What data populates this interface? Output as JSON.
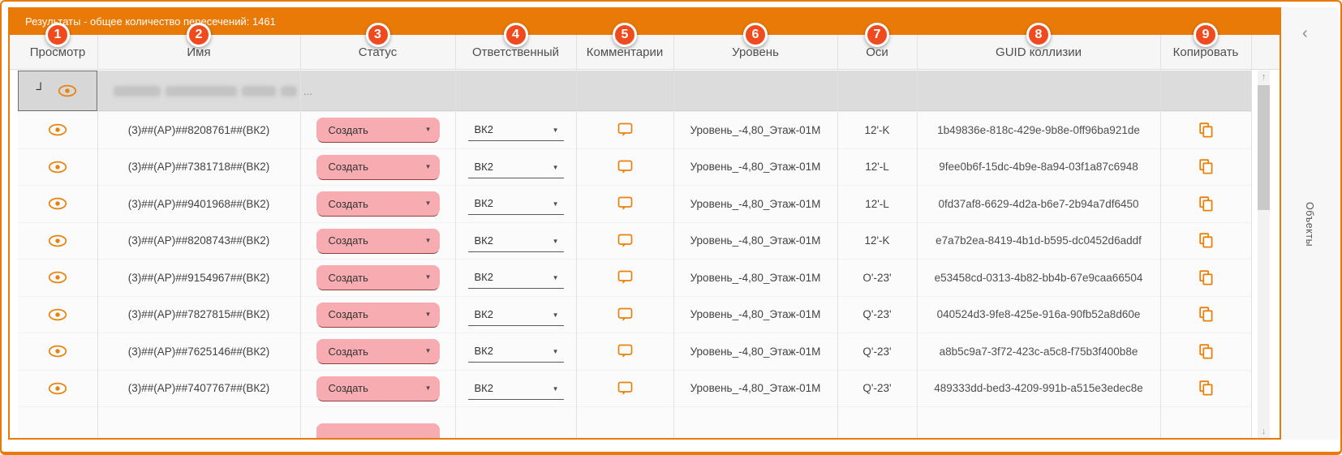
{
  "window": {
    "title": "Результаты - общее количество пересечений: 1461"
  },
  "side_panel": {
    "label": "Объекты",
    "collapse_icon": "‹",
    "collapse_icon_name": "chevron-left-icon"
  },
  "colors": {
    "accent": "#ea7a08",
    "badge": "#f04b1f",
    "icon": "#e8820e",
    "status_pink": "#f7acb1",
    "status_underline": "#8f4040"
  },
  "table": {
    "columns": [
      {
        "badge": "1",
        "label": "Просмотр"
      },
      {
        "badge": "2",
        "label": "Имя"
      },
      {
        "badge": "3",
        "label": "Статус"
      },
      {
        "badge": "4",
        "label": "Ответственный"
      },
      {
        "badge": "5",
        "label": "Комментарии"
      },
      {
        "badge": "6",
        "label": "Уровень"
      },
      {
        "badge": "7",
        "label": "Оси"
      },
      {
        "badge": "8",
        "label": "GUID коллизии"
      },
      {
        "badge": "9",
        "label": "Копировать"
      }
    ],
    "icons": {
      "view": "eye-icon",
      "comments": "speech-bubble-icon",
      "copy": "copy-icon",
      "group_collapse": "corner-arrow-glyph",
      "group_collapse_glyph": "┘",
      "scroll_up": "↑",
      "scroll_down": "↓"
    },
    "group_row": {
      "name_redacted": true,
      "ellipsis": "..."
    },
    "rows": [
      {
        "name": "(3)##(АР)##8208761##(ВК2)",
        "status": "Создать",
        "responsible": "ВК2",
        "level": "Уровень_-4,80_Этаж-01М",
        "axes": "12'-K",
        "guid": "1b49836e-818c-429e-9b8e-0ff96ba921de"
      },
      {
        "name": "(3)##(АР)##7381718##(ВК2)",
        "status": "Создать",
        "responsible": "ВК2",
        "level": "Уровень_-4,80_Этаж-01М",
        "axes": "12'-L",
        "guid": "9fee0b6f-15dc-4b9e-8a94-03f1a87c6948"
      },
      {
        "name": "(3)##(АР)##9401968##(ВК2)",
        "status": "Создать",
        "responsible": "ВК2",
        "level": "Уровень_-4,80_Этаж-01М",
        "axes": "12'-L",
        "guid": "0fd37af8-6629-4d2a-b6e7-2b94a7df6450"
      },
      {
        "name": "(3)##(АР)##8208743##(ВК2)",
        "status": "Создать",
        "responsible": "ВК2",
        "level": "Уровень_-4,80_Этаж-01М",
        "axes": "12'-K",
        "guid": "e7a7b2ea-8419-4b1d-b595-dc0452d6addf"
      },
      {
        "name": "(3)##(АР)##9154967##(ВК2)",
        "status": "Создать",
        "responsible": "ВК2",
        "level": "Уровень_-4,80_Этаж-01М",
        "axes": "O'-23'",
        "guid": "e53458cd-0313-4b82-bb4b-67e9caa66504"
      },
      {
        "name": "(3)##(АР)##7827815##(ВК2)",
        "status": "Создать",
        "responsible": "ВК2",
        "level": "Уровень_-4,80_Этаж-01М",
        "axes": "Q'-23'",
        "guid": "040524d3-9fe8-425e-916a-90fb52a8d60e"
      },
      {
        "name": "(3)##(АР)##7625146##(ВК2)",
        "status": "Создать",
        "responsible": "ВК2",
        "level": "Уровень_-4,80_Этаж-01М",
        "axes": "Q'-23'",
        "guid": "a8b5c9a7-3f72-423c-a5c8-f75b3f400b8e"
      },
      {
        "name": "(3)##(АР)##7407767##(ВК2)",
        "status": "Создать",
        "responsible": "ВК2",
        "level": "Уровень_-4,80_Этаж-01М",
        "axes": "Q'-23'",
        "guid": "489333dd-bed3-4209-991b-a515e3edec8e"
      }
    ],
    "partial_row_visible": true
  }
}
